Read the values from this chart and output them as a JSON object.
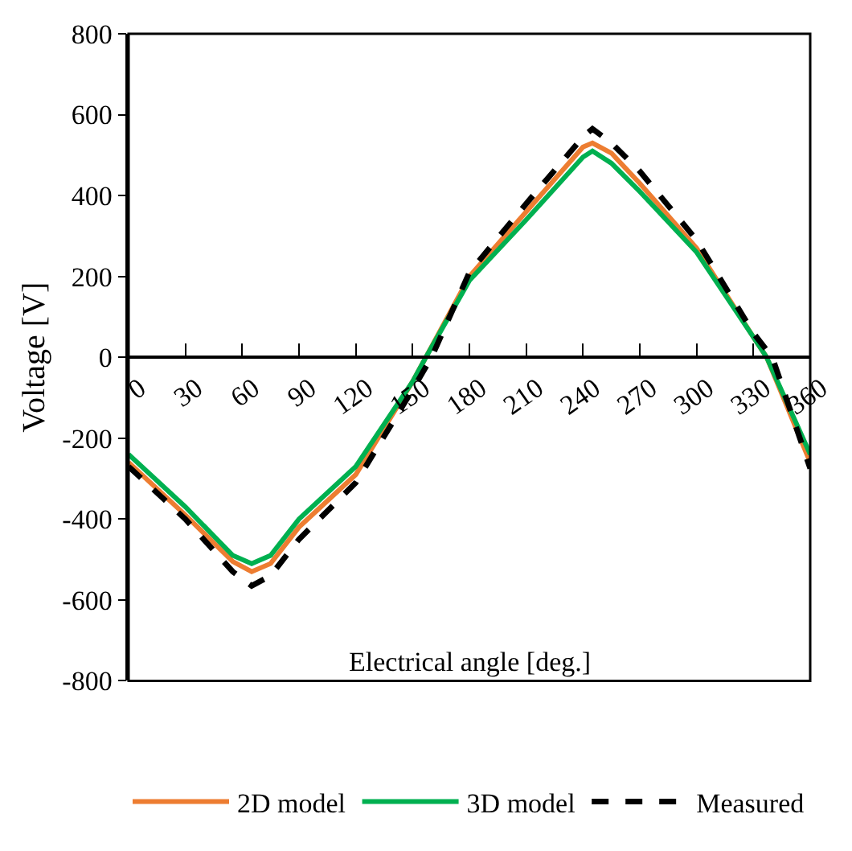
{
  "chart_data": {
    "type": "line",
    "xlabel": "Electrical angle [deg.]",
    "ylabel": "Voltage [V]",
    "xlim": [
      0,
      360
    ],
    "xticks": [
      0,
      30,
      60,
      90,
      120,
      150,
      180,
      210,
      240,
      270,
      300,
      330,
      360
    ],
    "ylim": [
      -800,
      800
    ],
    "yticks": [
      -800,
      -600,
      -400,
      -200,
      0,
      200,
      400,
      600,
      800
    ],
    "grid": false,
    "legend": "bottom",
    "marker": "none",
    "series": [
      {
        "name": "2D model",
        "color": "#ed7d31",
        "line_style": "solid",
        "x": [
          0,
          30,
          55,
          65,
          75,
          90,
          120,
          150,
          157,
          180,
          210,
          240,
          245,
          255,
          270,
          300,
          330,
          337,
          360
        ],
        "values": [
          -260,
          -390,
          -505,
          -530,
          -510,
          -420,
          -290,
          -60,
          0,
          200,
          360,
          520,
          530,
          505,
          430,
          270,
          50,
          0,
          -260
        ]
      },
      {
        "name": "3D model",
        "color": "#00b050",
        "line_style": "solid",
        "x": [
          0,
          30,
          55,
          65,
          75,
          90,
          120,
          150,
          157,
          180,
          210,
          240,
          245,
          255,
          270,
          300,
          330,
          337,
          360
        ],
        "values": [
          -240,
          -370,
          -490,
          -510,
          -490,
          -400,
          -270,
          -60,
          0,
          190,
          340,
          495,
          510,
          480,
          410,
          260,
          50,
          0,
          -240
        ]
      },
      {
        "name": "Measured",
        "color": "#000000",
        "line_style": "dashed",
        "x": [
          0,
          30,
          55,
          65,
          75,
          90,
          120,
          150,
          160,
          180,
          210,
          240,
          245,
          255,
          270,
          300,
          330,
          340,
          360
        ],
        "values": [
          -270,
          -400,
          -530,
          -565,
          -540,
          -450,
          -310,
          -80,
          0,
          210,
          380,
          545,
          565,
          530,
          460,
          290,
          60,
          0,
          -275
        ]
      }
    ]
  }
}
